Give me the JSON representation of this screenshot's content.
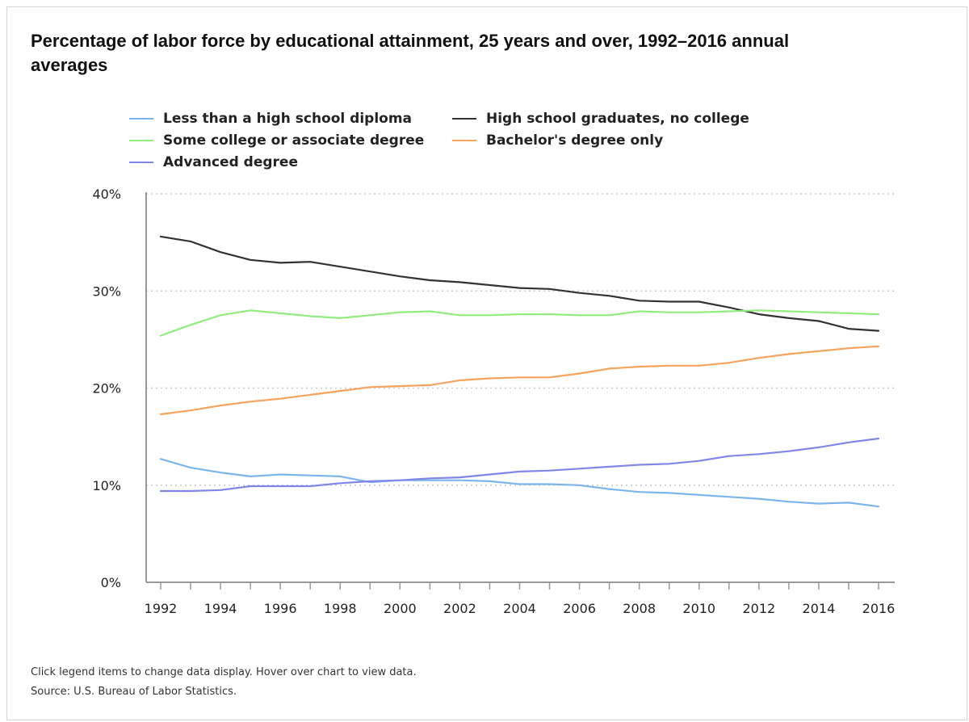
{
  "title": "Percentage of labor force by educational attainment, 25 years and over, 1992–2016 annual averages",
  "footnotes": [
    "Click legend items to change data display. Hover over chart to view data.",
    "Source: U.S. Bureau of Labor Statistics."
  ],
  "chart_data": {
    "type": "line",
    "title": "Percentage of labor force by educational attainment, 25 years and over, 1992–2016 annual averages",
    "xlabel": "",
    "ylabel": "",
    "x": [
      1992,
      1993,
      1994,
      1995,
      1996,
      1997,
      1998,
      1999,
      2000,
      2001,
      2002,
      2003,
      2004,
      2005,
      2006,
      2007,
      2008,
      2009,
      2010,
      2011,
      2012,
      2013,
      2014,
      2015,
      2016
    ],
    "xticks": [
      "1992",
      "1994",
      "1996",
      "1998",
      "2000",
      "2002",
      "2004",
      "2006",
      "2008",
      "2010",
      "2012",
      "2014",
      "2016"
    ],
    "yticks": [
      "0%",
      "10%",
      "20%",
      "30%",
      "40%"
    ],
    "ylim": [
      0,
      40
    ],
    "grid": "horizontal dotted",
    "legend_position": "top",
    "series": [
      {
        "name": "Less than a high school diploma",
        "color": "#7cb5ec",
        "values": [
          12.7,
          11.8,
          11.3,
          10.9,
          11.1,
          11.0,
          10.9,
          10.3,
          10.5,
          10.5,
          10.5,
          10.4,
          10.1,
          10.1,
          10.0,
          9.6,
          9.3,
          9.2,
          9.0,
          8.8,
          8.6,
          8.3,
          8.1,
          8.2,
          7.8
        ]
      },
      {
        "name": "High school graduates, no college",
        "color": "#333333",
        "values": [
          35.6,
          35.1,
          34.0,
          33.2,
          32.9,
          33.0,
          32.5,
          32.0,
          31.5,
          31.1,
          30.9,
          30.6,
          30.3,
          30.2,
          29.8,
          29.5,
          29.0,
          28.9,
          28.9,
          28.3,
          27.6,
          27.2,
          26.9,
          26.1,
          25.9
        ]
      },
      {
        "name": "Some college or associate degree",
        "color": "#90ed7d",
        "values": [
          25.4,
          26.5,
          27.5,
          28.0,
          27.7,
          27.4,
          27.2,
          27.5,
          27.8,
          27.9,
          27.5,
          27.5,
          27.6,
          27.6,
          27.5,
          27.5,
          27.9,
          27.8,
          27.8,
          27.9,
          28.0,
          27.9,
          27.8,
          27.7,
          27.6
        ]
      },
      {
        "name": "Bachelor's degree only",
        "color": "#f7a35c",
        "values": [
          17.3,
          17.7,
          18.2,
          18.6,
          18.9,
          19.3,
          19.7,
          20.1,
          20.2,
          20.3,
          20.8,
          21.0,
          21.1,
          21.1,
          21.5,
          22.0,
          22.2,
          22.3,
          22.3,
          22.6,
          23.1,
          23.5,
          23.8,
          24.1,
          24.3
        ]
      },
      {
        "name": "Advanced degree",
        "color": "#8085e9",
        "values": [
          9.4,
          9.4,
          9.5,
          9.9,
          9.9,
          9.9,
          10.2,
          10.4,
          10.5,
          10.7,
          10.8,
          11.1,
          11.4,
          11.5,
          11.7,
          11.9,
          12.1,
          12.2,
          12.5,
          13.0,
          13.2,
          13.5,
          13.9,
          14.4,
          14.8
        ]
      }
    ]
  }
}
